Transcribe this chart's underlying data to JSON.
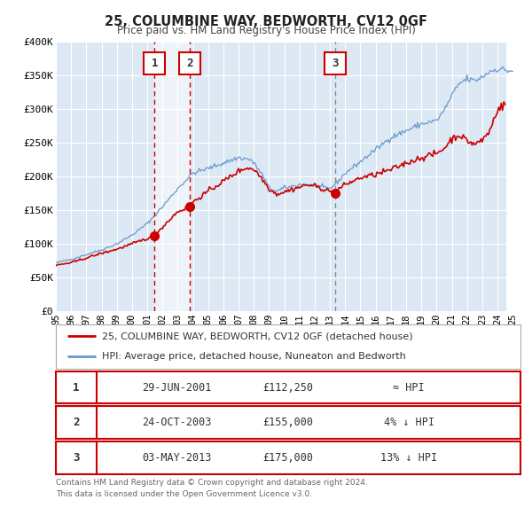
{
  "title": "25, COLUMBINE WAY, BEDWORTH, CV12 0GF",
  "subtitle": "Price paid vs. HM Land Registry's House Price Index (HPI)",
  "ylim": [
    0,
    400000
  ],
  "yticks": [
    0,
    50000,
    100000,
    150000,
    200000,
    250000,
    300000,
    350000,
    400000
  ],
  "ytick_labels": [
    "£0",
    "£50K",
    "£100K",
    "£150K",
    "£200K",
    "£250K",
    "£300K",
    "£350K",
    "£400K"
  ],
  "xlim_start": 1995.0,
  "xlim_end": 2025.5,
  "background_color": "#ffffff",
  "plot_bg_color": "#dde8f5",
  "grid_color": "#ffffff",
  "sale_color": "#cc0000",
  "hpi_color": "#6699cc",
  "hpi_fill_color": "#ccddef",
  "sale_label": "25, COLUMBINE WAY, BEDWORTH, CV12 0GF (detached house)",
  "hpi_label": "HPI: Average price, detached house, Nuneaton and Bedworth",
  "transactions": [
    {
      "num": 1,
      "date": "29-JUN-2001",
      "price": 112250,
      "x": 2001.49,
      "price_y": 112250,
      "line_color": "#cc0000",
      "line_style": "dashed",
      "note": "≈ HPI"
    },
    {
      "num": 2,
      "date": "24-OCT-2003",
      "price": 155000,
      "x": 2003.81,
      "price_y": 155000,
      "line_color": "#cc0000",
      "line_style": "dashed",
      "note": "4% ↓ HPI"
    },
    {
      "num": 3,
      "date": "03-MAY-2013",
      "price": 175000,
      "x": 2013.34,
      "price_y": 175000,
      "line_color": "#888888",
      "line_style": "dashed",
      "note": "13% ↓ HPI"
    }
  ],
  "span_x1": 2001.49,
  "span_x2": 2003.81,
  "span_color": "#ddeeff",
  "hatch_x": 2024.58,
  "footer_line1": "Contains HM Land Registry data © Crown copyright and database right 2024.",
  "footer_line2": "This data is licensed under the Open Government Licence v3.0."
}
